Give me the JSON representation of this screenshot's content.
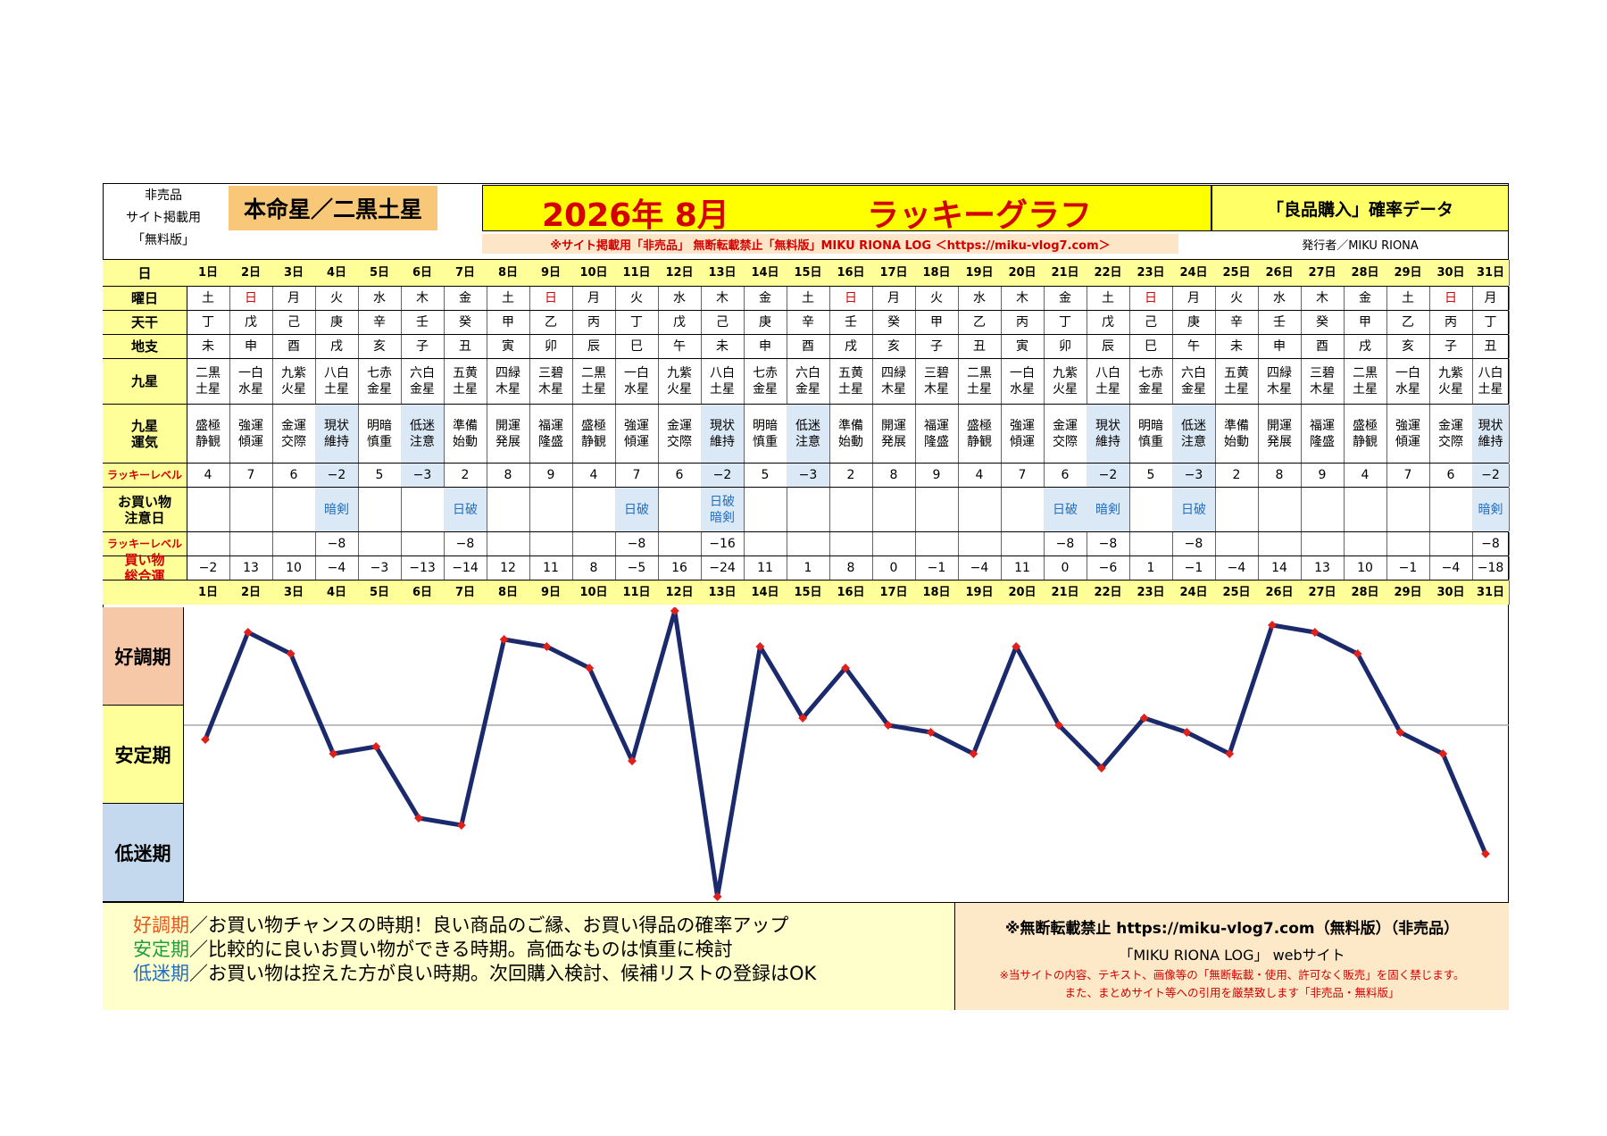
{
  "header": {
    "non_sale_lines": [
      "非売品",
      "サイト掲載用",
      "「無料版」"
    ],
    "honmeisei": "本命星／二黒土星",
    "year_month": "2026年 8月",
    "graph_title": "ラッキーグラフ",
    "data_name": "「良品購入」確率データ",
    "notice": "※サイト掲載用「非売品」 無断転載禁止「無料版」MIKU RIONA LOG ＜https://miku-vlog7.com＞",
    "publisher": "発行者／MIKU RIONA"
  },
  "row_labels": {
    "day": "日",
    "weekday": "曜日",
    "tenkan": "天干",
    "chishi": "地支",
    "kyusei": "九星",
    "kyusei_unki": "九星運気",
    "lucky_level": "ラッキーレベル",
    "caution": "お買い物注意日",
    "lucky_level2": "ラッキーレベル",
    "total": "買い物総合運"
  },
  "days": [
    "1日",
    "2日",
    "3日",
    "4日",
    "5日",
    "6日",
    "7日",
    "8日",
    "9日",
    "10日",
    "11日",
    "12日",
    "13日",
    "14日",
    "15日",
    "16日",
    "17日",
    "18日",
    "19日",
    "20日",
    "21日",
    "22日",
    "23日",
    "24日",
    "25日",
    "26日",
    "27日",
    "28日",
    "29日",
    "30日",
    "31日"
  ],
  "weekday": [
    "土",
    "日",
    "月",
    "火",
    "水",
    "木",
    "金",
    "土",
    "日",
    "月",
    "火",
    "水",
    "木",
    "金",
    "土",
    "日",
    "月",
    "火",
    "水",
    "木",
    "金",
    "土",
    "日",
    "月",
    "火",
    "水",
    "木",
    "金",
    "土",
    "日",
    "月"
  ],
  "tenkan": [
    "丁",
    "戊",
    "己",
    "庚",
    "辛",
    "壬",
    "癸",
    "甲",
    "乙",
    "丙",
    "丁",
    "戊",
    "己",
    "庚",
    "辛",
    "壬",
    "癸",
    "甲",
    "乙",
    "丙",
    "丁",
    "戊",
    "己",
    "庚",
    "辛",
    "壬",
    "癸",
    "甲",
    "乙",
    "丙",
    "丁"
  ],
  "chishi": [
    "未",
    "申",
    "酉",
    "戌",
    "亥",
    "子",
    "丑",
    "寅",
    "卯",
    "辰",
    "巳",
    "午",
    "未",
    "申",
    "酉",
    "戌",
    "亥",
    "子",
    "丑",
    "寅",
    "卯",
    "辰",
    "巳",
    "午",
    "未",
    "申",
    "酉",
    "戌",
    "亥",
    "子",
    "丑"
  ],
  "kyusei": [
    "二黒\n土星",
    "一白\n水星",
    "九紫\n火星",
    "八白\n土星",
    "七赤\n金星",
    "六白\n金星",
    "五黄\n土星",
    "四緑\n木星",
    "三碧\n木星",
    "二黒\n土星",
    "一白\n水星",
    "九紫\n火星",
    "八白\n土星",
    "七赤\n金星",
    "六白\n金星",
    "五黄\n土星",
    "四緑\n木星",
    "三碧\n木星",
    "二黒\n土星",
    "一白\n水星",
    "九紫\n火星",
    "八白\n土星",
    "七赤\n金星",
    "六白\n金星",
    "五黄\n土星",
    "四緑\n木星",
    "三碧\n木星",
    "二黒\n土星",
    "一白\n水星",
    "九紫\n火星",
    "八白\n土星"
  ],
  "kyusei_unki": [
    "盛極\n静観",
    "強運\n傾運",
    "金運\n交際",
    "現状\n維持",
    "明暗\n慎重",
    "低迷\n注意",
    "準備\n始動",
    "開運\n発展",
    "福運\n隆盛",
    "盛極\n静観",
    "強運\n傾運",
    "金運\n交際",
    "現状\n維持",
    "明暗\n慎重",
    "低迷\n注意",
    "準備\n始動",
    "開運\n発展",
    "福運\n隆盛",
    "盛極\n静観",
    "強運\n傾運",
    "金運\n交際",
    "現状\n維持",
    "明暗\n慎重",
    "低迷\n注意",
    "準備\n始動",
    "開運\n発展",
    "福運\n隆盛",
    "盛極\n静観",
    "強運\n傾運",
    "金運\n交際",
    "現状\n維持"
  ],
  "lucky_level": [
    "4",
    "7",
    "6",
    "−2",
    "5",
    "−3",
    "2",
    "8",
    "9",
    "4",
    "7",
    "6",
    "−2",
    "5",
    "−3",
    "2",
    "8",
    "9",
    "4",
    "7",
    "6",
    "−2",
    "5",
    "−3",
    "2",
    "8",
    "9",
    "4",
    "7",
    "6",
    "−2"
  ],
  "caution": [
    "",
    "",
    "",
    "暗剣",
    "",
    "",
    "日破",
    "",
    "",
    "",
    "日破",
    "",
    "日破\n暗剣",
    "",
    "",
    "",
    "",
    "",
    "",
    "",
    "日破",
    "暗剣",
    "",
    "日破",
    "",
    "",
    "",
    "",
    "",
    "",
    "暗剣"
  ],
  "lucky_level2": [
    "",
    "",
    "",
    "−8",
    "",
    "",
    "−8",
    "",
    "",
    "",
    "−8",
    "",
    "−16",
    "",
    "",
    "",
    "",
    "",
    "",
    "",
    "−8",
    "−8",
    "",
    "−8",
    "",
    "",
    "",
    "",
    "",
    "",
    "−8"
  ],
  "total": [
    "−2",
    "13",
    "10",
    "−4",
    "−3",
    "−13",
    "−14",
    "12",
    "11",
    "8",
    "−5",
    "16",
    "−24",
    "11",
    "1",
    "8",
    "0",
    "−1",
    "−4",
    "11",
    "0",
    "−6",
    "1",
    "−1",
    "−4",
    "14",
    "13",
    "10",
    "−1",
    "−4",
    "−18"
  ],
  "highlight_days": [
    4,
    6,
    13,
    15,
    22,
    24,
    31
  ],
  "zones": [
    {
      "label": "好調期",
      "color": "#f7c8a8"
    },
    {
      "label": "安定期",
      "color": "#ffff99"
    },
    {
      "label": "低迷期",
      "color": "#c5d9ee"
    }
  ],
  "legend": {
    "lines": [
      {
        "key": "好調期",
        "text": "／お買い物チャンスの時期！良い商品のご縁、お買い得品の確率アップ"
      },
      {
        "key": "安定期",
        "text": "／比較的に良いお買い物ができる時期。高価なものは慎重に検討"
      },
      {
        "key": "低迷期",
        "text": "／お買い物は控えた方が良い時期。次回購入検討、候補リストの登録はOK"
      }
    ]
  },
  "copyright": {
    "line1": "※無断転載禁止 https://miku-vlog7.com（無料版）（非売品）",
    "line2": "「MIKU RIONA LOG」 webサイト",
    "line3": "※当サイトの内容、テキスト、画像等の「無断転載・使用、許可なく販売」を固く禁じます。",
    "line4": "また、まとめサイト等への引用を厳禁致します「非売品・無料版」"
  },
  "colors": {
    "line": "#1a2a6c",
    "marker": "#e0201b",
    "title_red": "#d40000",
    "header_yellow": "#ffff99"
  },
  "chart_data": {
    "type": "line",
    "x": [
      1,
      2,
      3,
      4,
      5,
      6,
      7,
      8,
      9,
      10,
      11,
      12,
      13,
      14,
      15,
      16,
      17,
      18,
      19,
      20,
      21,
      22,
      23,
      24,
      25,
      26,
      27,
      28,
      29,
      30,
      31
    ],
    "values": [
      -2,
      13,
      10,
      -4,
      -3,
      -13,
      -14,
      12,
      11,
      8,
      -5,
      16,
      -24,
      11,
      1,
      8,
      0,
      -1,
      -4,
      11,
      0,
      -6,
      1,
      -1,
      -4,
      14,
      13,
      10,
      -1,
      -4,
      -18
    ],
    "ylim": [
      -24,
      16
    ],
    "reference_line": 0
  }
}
